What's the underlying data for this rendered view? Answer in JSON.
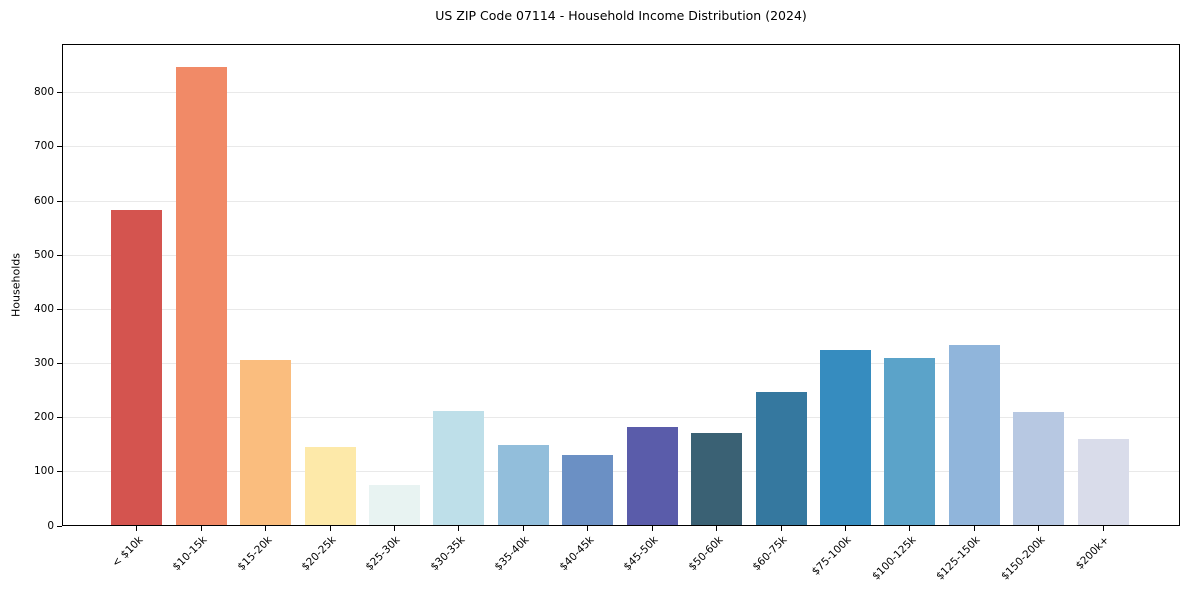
{
  "chart_data": {
    "type": "bar",
    "title": "US ZIP Code 07114 - Household Income Distribution (2024)",
    "xlabel": "",
    "ylabel": "Households",
    "categories": [
      "< $10k",
      "$10-15k",
      "$15-20k",
      "$20-25k",
      "$25-30k",
      "$30-35k",
      "$35-40k",
      "$40-45k",
      "$45-50k",
      "$50-60k",
      "$60-75k",
      "$75-100k",
      "$100-125k",
      "$125-150k",
      "$150-200k",
      "$200k+"
    ],
    "values": [
      583,
      847,
      307,
      145,
      75,
      212,
      150,
      131,
      183,
      171,
      247,
      325,
      310,
      335,
      211,
      160
    ],
    "bar_colors": [
      "#d4544f",
      "#f18a67",
      "#fabd7e",
      "#fde9a9",
      "#e8f3f2",
      "#bedfe9",
      "#92bedb",
      "#6b90c4",
      "#5a5caa",
      "#3a6174",
      "#35789f",
      "#368cbf",
      "#5ba3c9",
      "#90b5db",
      "#b7c8e2",
      "#d9dcea"
    ],
    "ylim": [
      0,
      890
    ],
    "yticks": [
      0,
      100,
      200,
      300,
      400,
      500,
      600,
      700,
      800
    ],
    "grid": "horizontal",
    "legend": "none",
    "colors": {
      "background": "#ffffff",
      "grid": "#e9e9e9",
      "frame": "#000000",
      "text": "#000000"
    }
  }
}
